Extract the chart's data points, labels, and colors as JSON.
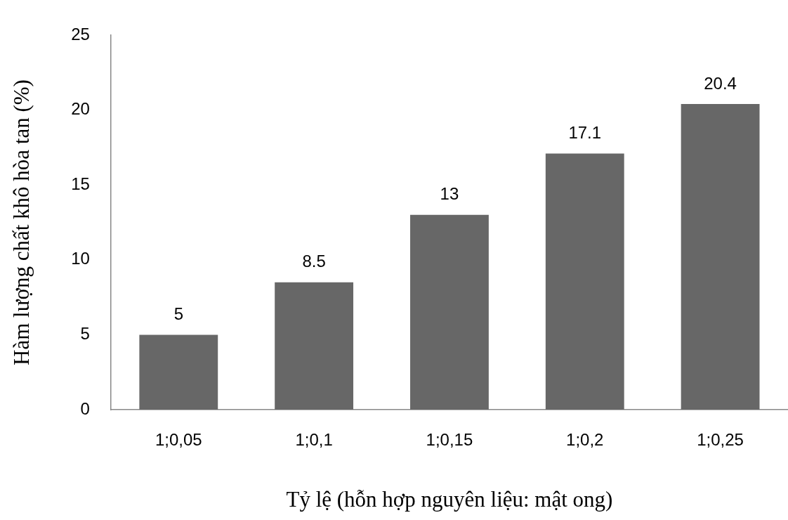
{
  "chart_data": {
    "type": "bar",
    "xlabel": "Tỷ lệ (hỗn hợp nguyên liệu: mật ong)",
    "ylabel": "Hàm lượng chất khô hòa tan (%)",
    "categories": [
      "1;0,05",
      "1;0,1",
      "1;0,15",
      "1;0,2",
      "1;0,25"
    ],
    "values": [
      5,
      8.5,
      13,
      17.1,
      20.4
    ],
    "color": "#676767",
    "ylim": [
      0,
      25
    ],
    "yticks": [
      0,
      5,
      10,
      15,
      20,
      25
    ],
    "grid": false,
    "legend": false,
    "data_labels": true
  }
}
